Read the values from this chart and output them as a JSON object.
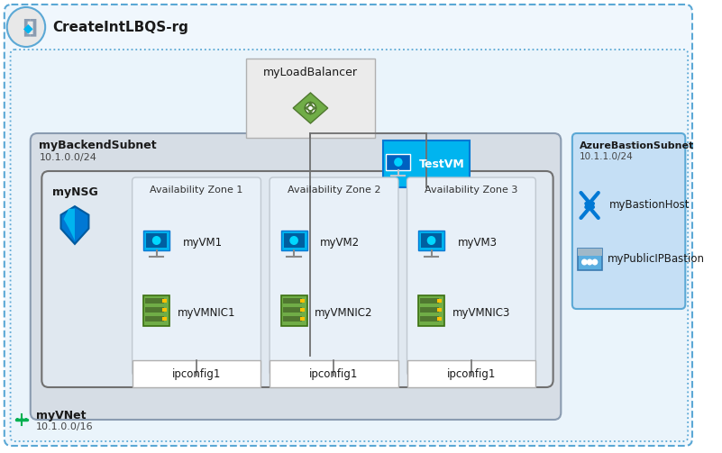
{
  "bg_color": "#ffffff",
  "rg_border_color": "#5ba8d5",
  "rg_fill": "#f0f7fd",
  "rg_label": "CreateIntLBQS-rg",
  "vnet_border_color": "#5ba8d5",
  "vnet_fill": "#eaf4fb",
  "vnet_label": "myVNet",
  "vnet_sub": "10.1.0.0/16",
  "backend_fill": "#d6dde5",
  "backend_border": "#8a9bb0",
  "backend_label": "myBackendSubnet",
  "backend_sub": "10.1.0.0/24",
  "bastion_fill": "#c5dff5",
  "bastion_border": "#5ba8d5",
  "bastion_label": "AzureBastionSubnet",
  "bastion_sub": "10.1.1.0/24",
  "lb_label": "myLoadBalancer",
  "lb_fill": "#ebebeb",
  "lb_border": "#b0b0b0",
  "testvm_label": "TestVM",
  "testvm_fill": "#00b4ef",
  "testvm_border": "#0078d4",
  "nsg_label": "myNSG",
  "pool_fill": "#e0e8f0",
  "pool_border": "#707070",
  "zones": [
    "Availability Zone 1",
    "Availability Zone 2",
    "Availability Zone 3"
  ],
  "zone_fill": "#e8f0f8",
  "zone_border": "#c0c8d0",
  "vm_labels": [
    "myVM1",
    "myVM2",
    "myVM3"
  ],
  "vmnic_labels": [
    "myVMNIC1",
    "myVMNIC2",
    "myVMNIC3"
  ],
  "ipconfig_labels": [
    "ipconfig1",
    "ipconfig1",
    "ipconfig1"
  ],
  "ipconfig_fill": "#ffffff",
  "ipconfig_border": "#b0b0b0",
  "bastion_host_label": "myBastionHost",
  "bastion_ip_label": "myPublicIPBastion",
  "line_color": "#707070"
}
